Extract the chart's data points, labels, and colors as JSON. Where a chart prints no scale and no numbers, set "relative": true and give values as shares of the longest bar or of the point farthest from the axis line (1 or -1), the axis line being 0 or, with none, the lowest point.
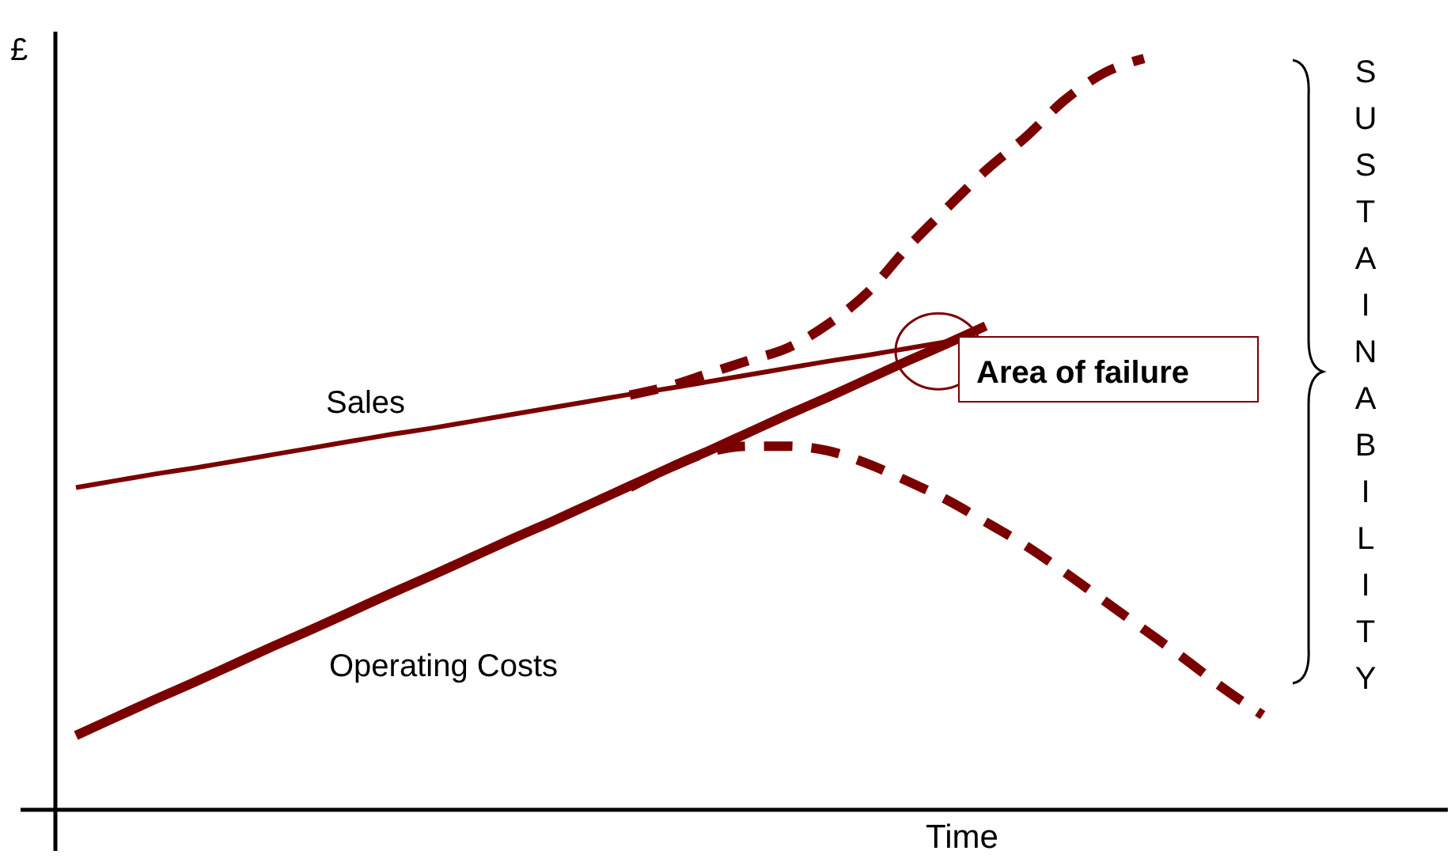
{
  "chart_data": {
    "type": "line",
    "relative": true,
    "xlabel": "Time",
    "ylabel": "£",
    "categories": [
      null,
      null,
      null,
      null,
      null,
      null,
      null,
      null,
      null,
      null,
      null,
      null,
      null,
      null,
      null,
      null,
      null,
      null,
      null,
      null,
      null,
      null,
      null,
      null,
      null,
      null,
      null,
      null,
      null,
      null,
      null
    ],
    "series": [
      {
        "name": "Sales",
        "color": "#7a0000",
        "line_style": "solid",
        "values": [
          0.429,
          0.438,
          0.447,
          0.455,
          0.464,
          0.473,
          0.482,
          0.491,
          0.5,
          0.508,
          0.517,
          0.526,
          0.535,
          0.544,
          0.553,
          0.561,
          0.57,
          0.579,
          0.588,
          0.597,
          0.605,
          0.614,
          0.623,
          null,
          null,
          null,
          null,
          null,
          null,
          null,
          null
        ]
      },
      {
        "name": "Operating Costs",
        "color": "#7a0000",
        "line_style": "solid",
        "values": [
          0.099,
          0.123,
          0.147,
          0.17,
          0.194,
          0.218,
          0.241,
          0.265,
          0.289,
          0.312,
          0.336,
          0.36,
          0.383,
          0.407,
          0.431,
          0.455,
          0.478,
          0.502,
          0.526,
          0.549,
          0.573,
          0.597,
          0.62,
          0.644,
          null,
          null,
          null,
          null,
          null,
          null,
          null
        ]
      },
      {
        "color": "#7a0000",
        "line_style": "dashed",
        "values": [
          null,
          null,
          null,
          null,
          null,
          null,
          null,
          null,
          null,
          null,
          null,
          null,
          null,
          null,
          0.552,
          0.564,
          0.581,
          0.598,
          0.615,
          0.646,
          0.688,
          0.747,
          0.8,
          0.851,
          0.895,
          0.945,
          0.981,
          1,
          null,
          null,
          null
        ]
      },
      {
        "color": "#7a0000",
        "line_style": "dashed",
        "values": [
          null,
          null,
          null,
          null,
          null,
          null,
          null,
          null,
          null,
          null,
          null,
          null,
          null,
          null,
          0.429,
          0.455,
          0.476,
          0.484,
          0.484,
          0.478,
          0.461,
          0.438,
          0.413,
          0.383,
          0.352,
          0.316,
          0.278,
          0.24,
          0.202,
          0.162,
          0.126
        ]
      }
    ],
    "annotations": [
      "Area of failure",
      "SUSTAINABILITY"
    ]
  }
}
